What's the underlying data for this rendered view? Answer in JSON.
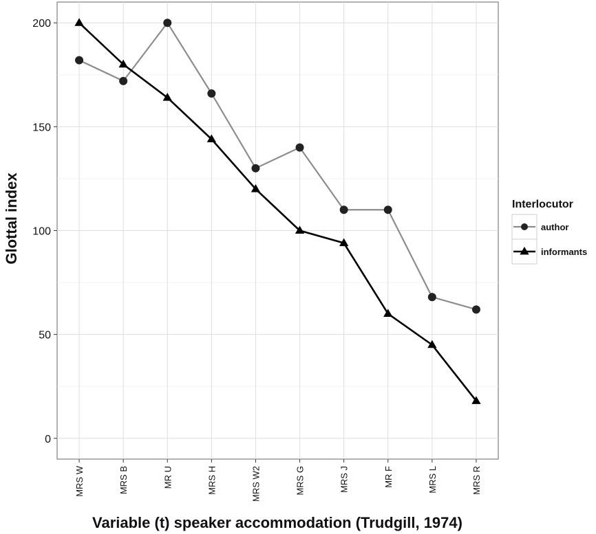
{
  "chart_data": {
    "type": "line",
    "title": "",
    "xlabel": "Variable (t) speaker accommodation (Trudgill, 1974)",
    "ylabel": "Glottal index",
    "ylim": [
      -10,
      210
    ],
    "yticks": [
      0,
      50,
      100,
      150,
      200
    ],
    "grid": true,
    "legend_placement": "right",
    "legend_title": "Interlocutor",
    "categories": [
      "MRS W",
      "MRS B",
      "MR U",
      "MRS H",
      "MRS W2",
      "MRS G",
      "MRS J",
      "MR F",
      "MRS L",
      "MRS R"
    ],
    "series": [
      {
        "name": "author",
        "marker": "circle",
        "color": "#8c8c8c",
        "values": [
          182,
          172,
          200,
          166,
          130,
          140,
          110,
          110,
          68,
          62
        ]
      },
      {
        "name": "informants",
        "marker": "triangle",
        "color": "#000000",
        "values": [
          200,
          180,
          164,
          144,
          120,
          100,
          94,
          60,
          45,
          18
        ]
      }
    ]
  }
}
